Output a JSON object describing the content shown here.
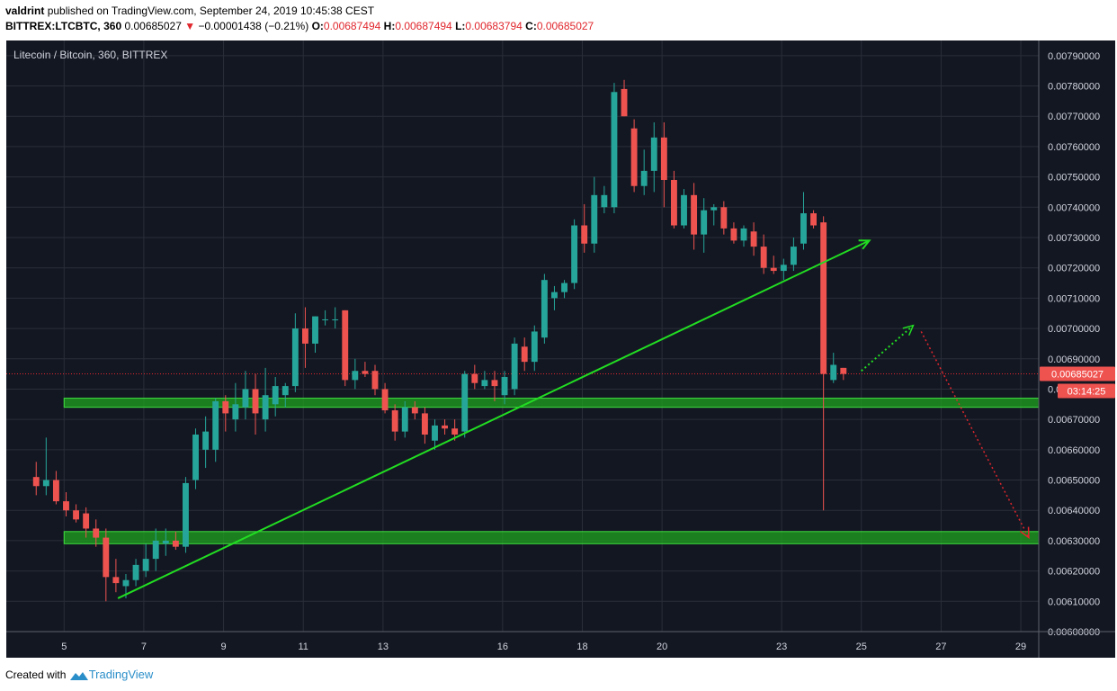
{
  "header": {
    "author": "valdrint",
    "published_text": "published on TradingView.com, September 24, 2019 10:45:38 CEST",
    "symbol": "BITTREX:LTCBTC, 360",
    "last": "0.00685027",
    "change": "−0.00001438 (−0.21%)",
    "o_label": "O:",
    "o_value": "0.00687494",
    "h_label": "H:",
    "h_value": "0.00687494",
    "l_label": "L:",
    "l_value": "0.00683794",
    "c_label": "C:",
    "c_value": "0.00685027"
  },
  "footer": {
    "created_with": "Created with",
    "brand": "TradingView"
  },
  "colors": {
    "background": "#131722",
    "grid": "#2a2e39",
    "up": "#26a69a",
    "down": "#ef5350",
    "trend": "#22dd22",
    "zone": "#1fa21f",
    "price_line": "#e0262c"
  },
  "chart_data": {
    "type": "candlestick",
    "title": "Litecoin / Bitcoin, 360, BITTREX",
    "ylim": [
      0.006,
      0.00795
    ],
    "y_ticks": [
      "0.00600000",
      "0.00610000",
      "0.00620000",
      "0.00630000",
      "0.00640000",
      "0.00650000",
      "0.00660000",
      "0.00670000",
      "0.00680000",
      "0.00690000",
      "0.00700000",
      "0.00710000",
      "0.00720000",
      "0.00730000",
      "0.00740000",
      "0.00750000",
      "0.00760000",
      "0.00770000",
      "0.00780000",
      "0.00790000"
    ],
    "x_ticks": [
      "5",
      "7",
      "9",
      "11",
      "13",
      "16",
      "18",
      "20",
      "23",
      "25",
      "27",
      "29"
    ],
    "x_tick_pos": [
      0.7,
      2.7,
      4.7,
      6.7,
      8.7,
      11.7,
      13.7,
      15.7,
      18.7,
      20.7,
      22.7,
      24.7
    ],
    "xlim": [
      -0.75,
      25.15
    ],
    "last_price_label": "0.00685027",
    "countdown_label": "03:14:25",
    "last_price": 0.00685027,
    "candles": [
      [
        0.0,
        0.00651,
        0.00656,
        0.00645,
        0.00648
      ],
      [
        0.25,
        0.00648,
        0.00664,
        0.00645,
        0.0065
      ],
      [
        0.5,
        0.0065,
        0.00653,
        0.00642,
        0.00643
      ],
      [
        0.75,
        0.00643,
        0.00646,
        0.00638,
        0.0064
      ],
      [
        1.0,
        0.0064,
        0.00642,
        0.00636,
        0.00637
      ],
      [
        1.25,
        0.00639,
        0.00641,
        0.00631,
        0.00634
      ],
      [
        1.5,
        0.00634,
        0.00637,
        0.00628,
        0.00631
      ],
      [
        1.75,
        0.00631,
        0.00634,
        0.0061,
        0.00618
      ],
      [
        2.0,
        0.00618,
        0.00624,
        0.00613,
        0.00616
      ],
      [
        2.25,
        0.00615,
        0.00619,
        0.00611,
        0.00617
      ],
      [
        2.5,
        0.00617,
        0.00624,
        0.00615,
        0.00622
      ],
      [
        2.75,
        0.0062,
        0.00629,
        0.00618,
        0.00624
      ],
      [
        3.0,
        0.00624,
        0.00634,
        0.0062,
        0.0063
      ],
      [
        3.25,
        0.00629,
        0.00634,
        0.00625,
        0.0063
      ],
      [
        3.5,
        0.0063,
        0.00633,
        0.00627,
        0.00628
      ],
      [
        3.75,
        0.00628,
        0.00651,
        0.00626,
        0.00649
      ],
      [
        4.0,
        0.0065,
        0.00667,
        0.00647,
        0.00665
      ],
      [
        4.25,
        0.0066,
        0.00671,
        0.00654,
        0.00666
      ],
      [
        4.5,
        0.0066,
        0.00677,
        0.00656,
        0.00676
      ],
      [
        4.75,
        0.00676,
        0.00678,
        0.00666,
        0.00672
      ],
      [
        5.0,
        0.0067,
        0.00682,
        0.00666,
        0.00675
      ],
      [
        5.25,
        0.00674,
        0.00686,
        0.0067,
        0.0068
      ],
      [
        5.5,
        0.0068,
        0.00685,
        0.00665,
        0.00672
      ],
      [
        5.75,
        0.0067,
        0.00687,
        0.00666,
        0.00678
      ],
      [
        6.0,
        0.00675,
        0.00684,
        0.00671,
        0.00681
      ],
      [
        6.25,
        0.00678,
        0.00682,
        0.00674,
        0.00681
      ],
      [
        6.5,
        0.00681,
        0.00705,
        0.00679,
        0.007
      ],
      [
        6.75,
        0.007,
        0.00707,
        0.00687,
        0.00695
      ],
      [
        7.0,
        0.00695,
        0.00704,
        0.00692,
        0.00704
      ],
      [
        7.25,
        0.00703,
        0.00706,
        0.00701,
        0.00703
      ],
      [
        7.5,
        0.00703,
        0.00707,
        0.007,
        0.00703
      ],
      [
        7.75,
        0.00706,
        0.00706,
        0.00681,
        0.00683
      ],
      [
        8.0,
        0.00683,
        0.0069,
        0.0068,
        0.00686
      ],
      [
        8.25,
        0.00686,
        0.00689,
        0.00684,
        0.00685
      ],
      [
        8.5,
        0.00686,
        0.00688,
        0.00678,
        0.0068
      ],
      [
        8.75,
        0.0068,
        0.00682,
        0.00672,
        0.00673
      ],
      [
        9.0,
        0.00673,
        0.00675,
        0.00663,
        0.00666
      ],
      [
        9.25,
        0.00666,
        0.00676,
        0.00664,
        0.00674
      ],
      [
        9.5,
        0.00674,
        0.00676,
        0.0067,
        0.00672
      ],
      [
        9.75,
        0.00672,
        0.00674,
        0.00662,
        0.00665
      ],
      [
        10.0,
        0.00663,
        0.0067,
        0.0066,
        0.00668
      ],
      [
        10.25,
        0.00668,
        0.0067,
        0.00665,
        0.00667
      ],
      [
        10.5,
        0.00667,
        0.0067,
        0.00663,
        0.00665
      ],
      [
        10.75,
        0.00666,
        0.00686,
        0.00664,
        0.00685
      ],
      [
        11.0,
        0.00685,
        0.00688,
        0.0068,
        0.00682
      ],
      [
        11.25,
        0.00681,
        0.00686,
        0.0068,
        0.00683
      ],
      [
        11.5,
        0.00683,
        0.00686,
        0.00676,
        0.00681
      ],
      [
        11.75,
        0.00678,
        0.00686,
        0.00675,
        0.00684
      ],
      [
        12.0,
        0.0068,
        0.00697,
        0.00678,
        0.00695
      ],
      [
        12.25,
        0.00694,
        0.00697,
        0.00686,
        0.00689
      ],
      [
        12.5,
        0.00689,
        0.00701,
        0.00686,
        0.00699
      ],
      [
        12.75,
        0.00697,
        0.00718,
        0.00695,
        0.00716
      ],
      [
        13.0,
        0.0071,
        0.00714,
        0.00706,
        0.00712
      ],
      [
        13.25,
        0.00712,
        0.00716,
        0.0071,
        0.00715
      ],
      [
        13.5,
        0.00715,
        0.00736,
        0.00713,
        0.00734
      ],
      [
        13.75,
        0.00734,
        0.00741,
        0.00725,
        0.00728
      ],
      [
        14.0,
        0.00728,
        0.0075,
        0.00725,
        0.00744
      ],
      [
        14.25,
        0.0074,
        0.00747,
        0.00738,
        0.00744
      ],
      [
        14.5,
        0.0074,
        0.00781,
        0.00738,
        0.00778
      ],
      [
        14.75,
        0.00779,
        0.00782,
        0.0077,
        0.0077
      ],
      [
        15.0,
        0.00766,
        0.00769,
        0.00745,
        0.00747
      ],
      [
        15.25,
        0.00747,
        0.00759,
        0.00744,
        0.00752
      ],
      [
        15.5,
        0.00752,
        0.00768,
        0.00745,
        0.00763
      ],
      [
        15.75,
        0.00763,
        0.00768,
        0.0074,
        0.00749
      ],
      [
        16.0,
        0.00749,
        0.00752,
        0.00733,
        0.00734
      ],
      [
        16.25,
        0.00734,
        0.00746,
        0.00733,
        0.00744
      ],
      [
        16.5,
        0.00744,
        0.00748,
        0.00726,
        0.00731
      ],
      [
        16.75,
        0.00731,
        0.00743,
        0.00725,
        0.00739
      ],
      [
        17.0,
        0.00739,
        0.00741,
        0.00734,
        0.0074
      ],
      [
        17.25,
        0.0074,
        0.00742,
        0.00731,
        0.00733
      ],
      [
        17.5,
        0.00733,
        0.00735,
        0.00728,
        0.00729
      ],
      [
        17.75,
        0.00729,
        0.00734,
        0.00727,
        0.00733
      ],
      [
        18.0,
        0.00732,
        0.00735,
        0.00724,
        0.00727
      ],
      [
        18.25,
        0.00727,
        0.00731,
        0.00718,
        0.0072
      ],
      [
        18.5,
        0.0072,
        0.00724,
        0.00718,
        0.00719
      ],
      [
        18.75,
        0.00719,
        0.00723,
        0.00716,
        0.00721
      ],
      [
        19.0,
        0.00721,
        0.0073,
        0.00719,
        0.00727
      ],
      [
        19.25,
        0.00728,
        0.00745,
        0.00726,
        0.00738
      ],
      [
        19.5,
        0.00738,
        0.00739,
        0.00733,
        0.00734
      ],
      [
        19.75,
        0.00735,
        0.00737,
        0.0064,
        0.00685
      ],
      [
        20.0,
        0.00683,
        0.00692,
        0.00682,
        0.00688
      ],
      [
        20.25,
        0.00687,
        0.00687,
        0.00683,
        0.00685
      ]
    ]
  },
  "annotations": {
    "trend_line": {
      "from": [
        2.05,
        0.00611
      ],
      "to": [
        20.9,
        0.00729
      ]
    },
    "support_zones": [
      {
        "x_from": 0.7,
        "x_to": 25.15,
        "y_low": 0.00674,
        "y_high": 0.00677
      },
      {
        "x_from": 0.7,
        "x_to": 25.15,
        "y_low": 0.00629,
        "y_high": 0.00633
      }
    ],
    "projection_up": {
      "from": [
        20.7,
        0.00686
      ],
      "to": [
        22.0,
        0.00701
      ]
    },
    "projection_down": {
      "from": [
        22.2,
        0.00699
      ],
      "to": [
        24.9,
        0.00631
      ]
    }
  }
}
